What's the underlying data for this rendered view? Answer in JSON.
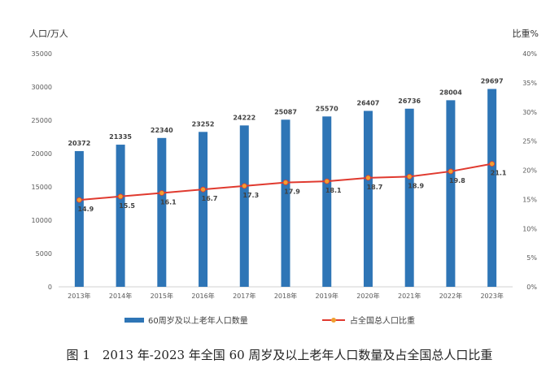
{
  "chart_data": {
    "type": "bar",
    "categories": [
      "2013年",
      "2014年",
      "2015年",
      "2016年",
      "2017年",
      "2018年",
      "2019年",
      "2020年",
      "2021年",
      "2022年",
      "2023年"
    ],
    "series": [
      {
        "name": "60周岁及以上老年人口数量",
        "type": "bar",
        "axis": "left",
        "values": [
          20372,
          21335,
          22340,
          23252,
          24222,
          25087,
          25570,
          26407,
          26736,
          28004,
          29697
        ],
        "labels": [
          "20372",
          "21335",
          "22340",
          "23252",
          "24222",
          "25087",
          "25570",
          "26407",
          "26736",
          "28004",
          "29697"
        ]
      },
      {
        "name": "占全国总人口比重",
        "type": "line",
        "axis": "right",
        "values": [
          14.9,
          15.5,
          16.1,
          16.7,
          17.3,
          17.9,
          18.1,
          18.7,
          18.9,
          19.8,
          21.1
        ],
        "labels": [
          "14.9",
          "15.5",
          "16.1",
          "16.7",
          "17.3",
          "17.9",
          "18.1",
          "18.7",
          "18.9",
          "19.8",
          "21.1"
        ]
      }
    ],
    "ylabel": "人口/万人",
    "y2label": "比重%",
    "ylim": [
      0,
      35000
    ],
    "y2lim": [
      0,
      40
    ],
    "yticks": [
      "0",
      "5000",
      "10000",
      "15000",
      "20000",
      "25000",
      "30000",
      "35000"
    ],
    "y2ticks": [
      "0%",
      "5%",
      "10%",
      "15%",
      "20%",
      "25%",
      "30%",
      "35%",
      "40%"
    ],
    "grid": false,
    "legend_position": "bottom",
    "colors": {
      "bar": "#2e75b6",
      "line": "#e03a2f",
      "marker": "#f0a030"
    }
  },
  "caption": "图 1　2013 年-2023 年全国 60 周岁及以上老年人口数量及占全国总人口比重"
}
